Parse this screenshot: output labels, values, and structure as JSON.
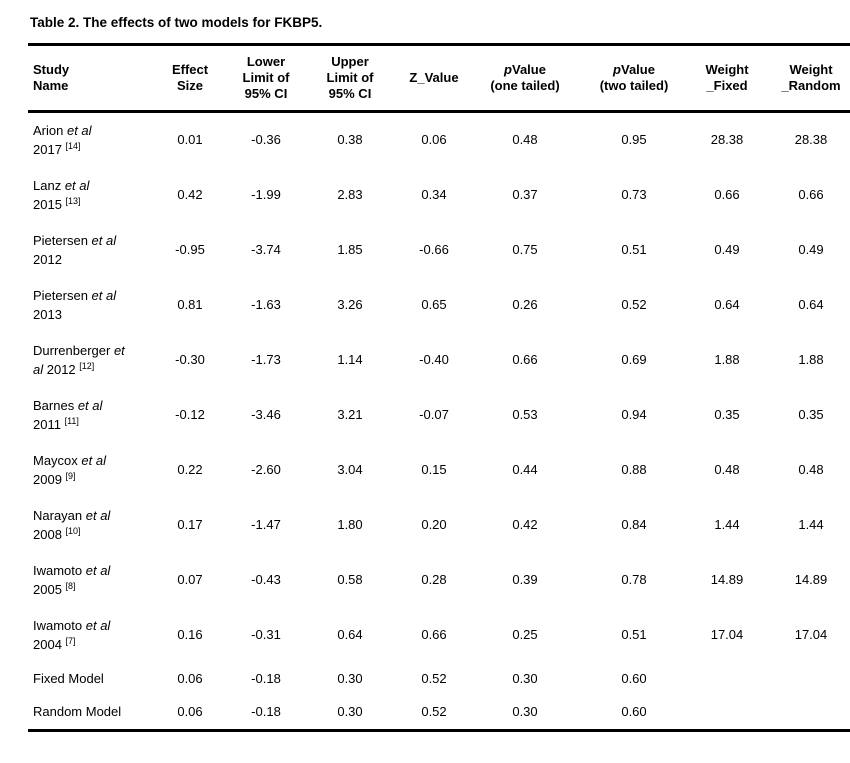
{
  "page": {
    "background_color": "#ffffff",
    "text_color": "#000000",
    "rule_color": "#000000"
  },
  "title": "Table 2. The effects of two models for FKBP5.",
  "table": {
    "columns": [
      {
        "key": "study-name",
        "align": "left",
        "label": [
          {
            "t": "Study\nName"
          }
        ]
      },
      {
        "key": "effect-size",
        "align": "center",
        "label": [
          {
            "t": "Effect\nSize"
          }
        ]
      },
      {
        "key": "lower-limit-95-ci",
        "align": "center",
        "label": [
          {
            "t": "Lower\nLimit of\n95% CI"
          }
        ]
      },
      {
        "key": "upper-limit-95-ci",
        "align": "center",
        "label": [
          {
            "t": "Upper\nLimit of\n95% CI"
          }
        ]
      },
      {
        "key": "z-value",
        "align": "center",
        "label": [
          {
            "t": "Z_Value"
          }
        ]
      },
      {
        "key": "p-value-one-tailed",
        "align": "center",
        "label": [
          {
            "t": "p",
            "i": true
          },
          {
            "t": "Value\n(one tailed)"
          }
        ]
      },
      {
        "key": "p-value-two-tailed",
        "align": "center",
        "label": [
          {
            "t": "p",
            "i": true
          },
          {
            "t": "Value\n(two tailed)"
          }
        ]
      },
      {
        "key": "weight-fixed",
        "align": "center",
        "label": [
          {
            "t": "Weight\n_Fixed"
          }
        ]
      },
      {
        "key": "weight-random",
        "align": "center",
        "label": [
          {
            "t": "Weight\n_Random"
          }
        ]
      }
    ],
    "rows": [
      {
        "type": "study",
        "name": [
          {
            "t": "Arion "
          },
          {
            "t": "et al",
            "i": true
          },
          {
            "t": "\n2017 "
          },
          {
            "t": "[14]",
            "sup": true
          }
        ],
        "values": [
          "0.01",
          "-0.36",
          "0.38",
          "0.06",
          "0.48",
          "0.95",
          "28.38",
          "28.38"
        ]
      },
      {
        "type": "study",
        "name": [
          {
            "t": "Lanz "
          },
          {
            "t": "et al",
            "i": true
          },
          {
            "t": "\n2015 "
          },
          {
            "t": "[13]",
            "sup": true
          }
        ],
        "values": [
          "0.42",
          "-1.99",
          "2.83",
          "0.34",
          "0.37",
          "0.73",
          "0.66",
          "0.66"
        ]
      },
      {
        "type": "study",
        "name": [
          {
            "t": "Pietersen "
          },
          {
            "t": "et al",
            "i": true
          },
          {
            "t": "\n2012"
          }
        ],
        "values": [
          "-0.95",
          "-3.74",
          "1.85",
          "-0.66",
          "0.75",
          "0.51",
          "0.49",
          "0.49"
        ]
      },
      {
        "type": "study",
        "name": [
          {
            "t": "Pietersen "
          },
          {
            "t": "et al",
            "i": true
          },
          {
            "t": "\n2013"
          }
        ],
        "values": [
          "0.81",
          "-1.63",
          "3.26",
          "0.65",
          "0.26",
          "0.52",
          "0.64",
          "0.64"
        ]
      },
      {
        "type": "study",
        "name": [
          {
            "t": "Durrenberger "
          },
          {
            "t": "et\nal",
            "i": true
          },
          {
            "t": " 2012 "
          },
          {
            "t": "[12]",
            "sup": true
          }
        ],
        "values": [
          "-0.30",
          "-1.73",
          "1.14",
          "-0.40",
          "0.66",
          "0.69",
          "1.88",
          "1.88"
        ]
      },
      {
        "type": "study",
        "name": [
          {
            "t": "Barnes "
          },
          {
            "t": "et al",
            "i": true
          },
          {
            "t": "\n2011 "
          },
          {
            "t": "[11]",
            "sup": true
          }
        ],
        "values": [
          "-0.12",
          "-3.46",
          "3.21",
          "-0.07",
          "0.53",
          "0.94",
          "0.35",
          "0.35"
        ]
      },
      {
        "type": "study",
        "name": [
          {
            "t": "Maycox "
          },
          {
            "t": "et al",
            "i": true
          },
          {
            "t": "\n2009 "
          },
          {
            "t": "[9]",
            "sup": true
          }
        ],
        "values": [
          "0.22",
          "-2.60",
          "3.04",
          "0.15",
          "0.44",
          "0.88",
          "0.48",
          "0.48"
        ]
      },
      {
        "type": "study",
        "name": [
          {
            "t": "Narayan "
          },
          {
            "t": "et al",
            "i": true
          },
          {
            "t": "\n2008 "
          },
          {
            "t": "[10]",
            "sup": true
          }
        ],
        "values": [
          "0.17",
          "-1.47",
          "1.80",
          "0.20",
          "0.42",
          "0.84",
          "1.44",
          "1.44"
        ]
      },
      {
        "type": "study",
        "name": [
          {
            "t": "Iwamoto "
          },
          {
            "t": "et al",
            "i": true
          },
          {
            "t": "\n2005 "
          },
          {
            "t": "[8]",
            "sup": true
          }
        ],
        "values": [
          "0.07",
          "-0.43",
          "0.58",
          "0.28",
          "0.39",
          "0.78",
          "14.89",
          "14.89"
        ]
      },
      {
        "type": "study",
        "name": [
          {
            "t": "Iwamoto "
          },
          {
            "t": "et al",
            "i": true
          },
          {
            "t": "\n2004 "
          },
          {
            "t": "[7]",
            "sup": true
          }
        ],
        "values": [
          "0.16",
          "-0.31",
          "0.64",
          "0.66",
          "0.25",
          "0.51",
          "17.04",
          "17.04"
        ]
      },
      {
        "type": "summary",
        "name": [
          {
            "t": "Fixed Model"
          }
        ],
        "values": [
          "0.06",
          "-0.18",
          "0.30",
          "0.52",
          "0.30",
          "0.60",
          "",
          ""
        ]
      },
      {
        "type": "summary",
        "name": [
          {
            "t": "Random Model"
          }
        ],
        "values": [
          "0.06",
          "-0.18",
          "0.30",
          "0.52",
          "0.30",
          "0.60",
          "",
          ""
        ]
      }
    ]
  }
}
